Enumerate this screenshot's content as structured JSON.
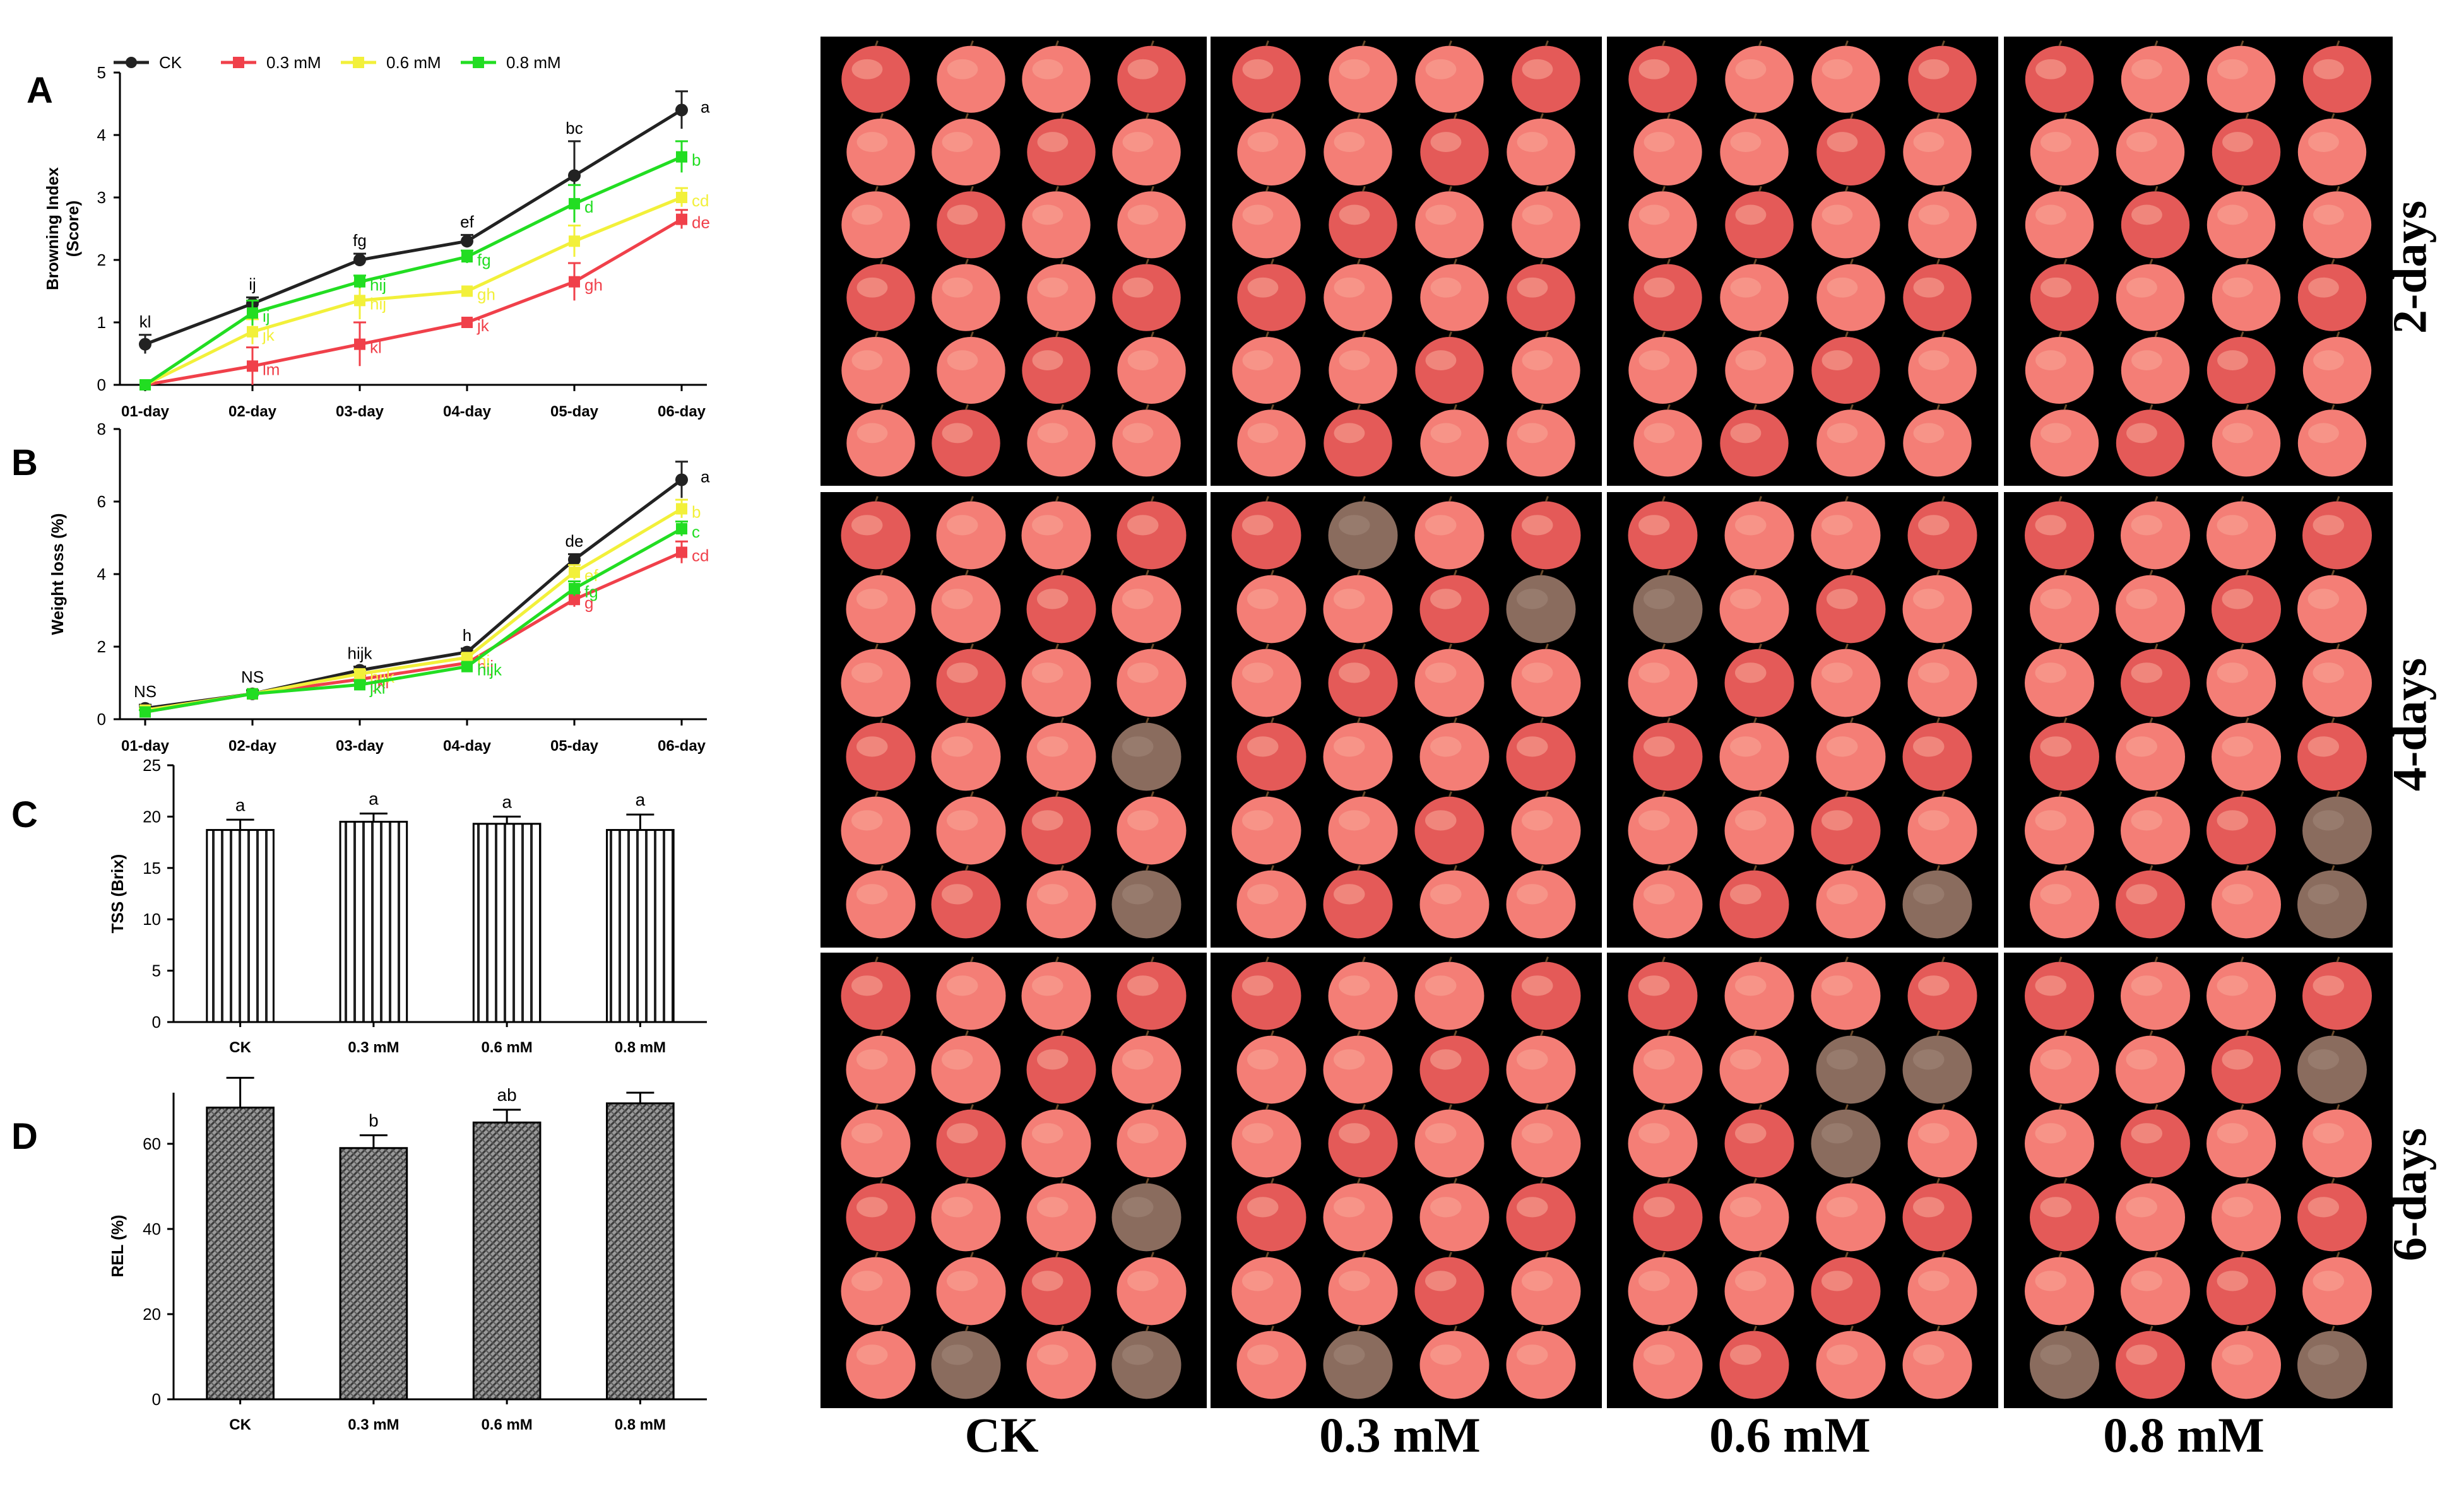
{
  "colors": {
    "CK": "#222222",
    "0.3 mM": "#f0404a",
    "0.6 mM": "#f2f03a",
    "0.8 mM": "#22dd22",
    "lychee_light": "#f47e76",
    "lychee_dark": "#e45a58",
    "browned": "#8a6c5e",
    "photo_bg": "#000000"
  },
  "chart_data": [
    {
      "id": "A",
      "panel_letter": "A",
      "type": "line",
      "categories": [
        "01-day",
        "02-day",
        "03-day",
        "04-day",
        "05-day",
        "06-day"
      ],
      "ylabel": "Browning Index\n(Score)",
      "ylabel_lines": [
        "Browning Index",
        "(Score)"
      ],
      "ylim": [
        0,
        5
      ],
      "yticks": [
        0,
        1,
        2,
        3,
        4,
        5
      ],
      "legend": {
        "placement": "top",
        "entries": [
          "CK",
          "0.3 mM",
          "0.6 mM",
          "0.8 mM"
        ]
      },
      "series": [
        {
          "name": "CK",
          "values": [
            0.65,
            1.3,
            2.0,
            2.3,
            3.35,
            4.4
          ],
          "err": [
            0.15,
            0.1,
            0.1,
            0.1,
            0.55,
            0.3
          ],
          "labels": [
            "kl",
            "ij",
            "fg",
            "ef",
            "bc",
            "a"
          ]
        },
        {
          "name": "0.3 mM",
          "values": [
            0.0,
            0.3,
            0.65,
            1.0,
            1.65,
            2.65
          ],
          "err": [
            0,
            0.3,
            0.35,
            0,
            0.3,
            0.15
          ],
          "labels": [
            "",
            "lm",
            "kl",
            "jk",
            "gh",
            "de"
          ]
        },
        {
          "name": "0.6 mM",
          "values": [
            0.0,
            0.85,
            1.35,
            1.5,
            2.3,
            3.0
          ],
          "err": [
            0,
            0.2,
            0.3,
            0,
            0.25,
            0.15
          ],
          "labels": [
            "",
            "jk",
            "hij",
            "gh",
            "",
            "cd"
          ]
        },
        {
          "name": "0.8 mM",
          "values": [
            0.0,
            1.15,
            1.65,
            2.05,
            2.9,
            3.65
          ],
          "err": [
            0,
            0.2,
            0.1,
            0.1,
            0.3,
            0.25
          ],
          "labels": [
            "",
            "ij",
            "hij",
            "fg",
            "d",
            "b"
          ]
        }
      ]
    },
    {
      "id": "B",
      "panel_letter": "B",
      "type": "line",
      "categories": [
        "01-day",
        "02-day",
        "03-day",
        "04-day",
        "05-day",
        "06-day"
      ],
      "ylabel": "Weight loss (%)",
      "ylabel_lines": [
        "Weight loss (%)"
      ],
      "ylim": [
        0,
        8
      ],
      "yticks": [
        0,
        2,
        4,
        6,
        8
      ],
      "series": [
        {
          "name": "CK",
          "values": [
            0.3,
            0.7,
            1.35,
            1.85,
            4.4,
            6.6
          ],
          "err": [
            0.1,
            0.1,
            0.1,
            0.1,
            0.15,
            0.5
          ],
          "labels": [
            "NS",
            "NS",
            "hijk",
            "h",
            "de",
            "a"
          ]
        },
        {
          "name": "0.3 mM",
          "values": [
            0.2,
            0.7,
            1.1,
            1.55,
            3.3,
            4.6
          ],
          "err": [
            0.05,
            0.05,
            0.1,
            0.1,
            0.2,
            0.3
          ],
          "labels": [
            "",
            "",
            "ijkl",
            "hij",
            "g",
            "cd"
          ]
        },
        {
          "name": "0.6 mM",
          "values": [
            0.25,
            0.7,
            1.25,
            1.7,
            4.05,
            5.8
          ],
          "err": [
            0.05,
            0.05,
            0.1,
            0.1,
            0.2,
            0.25
          ],
          "labels": [
            "",
            "",
            "hijk",
            "hi",
            "ef",
            "b"
          ]
        },
        {
          "name": "0.8 mM",
          "values": [
            0.2,
            0.7,
            0.95,
            1.45,
            3.6,
            5.25
          ],
          "err": [
            0.05,
            0.05,
            0.1,
            0.1,
            0.2,
            0.2
          ],
          "labels": [
            "",
            "",
            "jkl",
            "hijk",
            "fg",
            "c"
          ]
        }
      ]
    },
    {
      "id": "C",
      "panel_letter": "C",
      "type": "bar",
      "pattern": "vertical-stripes",
      "categories": [
        "CK",
        "0.3 mM",
        "0.6 mM",
        "0.8 mM"
      ],
      "values": [
        18.7,
        19.5,
        19.3,
        18.7
      ],
      "err": [
        1.0,
        0.8,
        0.7,
        1.5
      ],
      "labels": [
        "a",
        "a",
        "a",
        "a"
      ],
      "ylabel": "TSS (Brix)",
      "ylim": [
        0,
        25
      ],
      "yticks": [
        0,
        5,
        10,
        15,
        20,
        25
      ]
    },
    {
      "id": "D",
      "panel_letter": "D",
      "type": "bar",
      "pattern": "dense-hatch",
      "categories": [
        "CK",
        "0.3 mM",
        "0.6 mM",
        "0.8 mM"
      ],
      "values": [
        68.5,
        59.0,
        65.0,
        69.5
      ],
      "err": [
        7.0,
        3.0,
        3.0,
        2.5
      ],
      "labels": [
        "",
        "b",
        "ab",
        ""
      ],
      "ylabel": "REL (%)",
      "ylim": [
        0,
        72
      ],
      "yticks": [
        0,
        20,
        40,
        60
      ]
    }
  ],
  "photo_grid": {
    "column_labels": [
      "CK",
      "0.3 mM",
      "0.6 mM",
      "0.8 mM"
    ],
    "row_labels": [
      "2-days",
      "4-days",
      "6-days"
    ],
    "fruit_grid": {
      "columns": 4,
      "rows": 6
    },
    "browned_fruits": [
      {
        "row": 1,
        "col": 0,
        "fruits": [
          15,
          23
        ]
      },
      {
        "row": 1,
        "col": 1,
        "fruits": [
          1,
          7
        ]
      },
      {
        "row": 1,
        "col": 2,
        "fruits": [
          23,
          4
        ]
      },
      {
        "row": 1,
        "col": 3,
        "fruits": [
          23,
          19
        ]
      },
      {
        "row": 2,
        "col": 0,
        "fruits": [
          15,
          21,
          23
        ]
      },
      {
        "row": 2,
        "col": 1,
        "fruits": [
          21
        ]
      },
      {
        "row": 2,
        "col": 2,
        "fruits": [
          6,
          7,
          10
        ]
      },
      {
        "row": 2,
        "col": 3,
        "fruits": [
          7,
          23,
          20
        ]
      }
    ]
  }
}
